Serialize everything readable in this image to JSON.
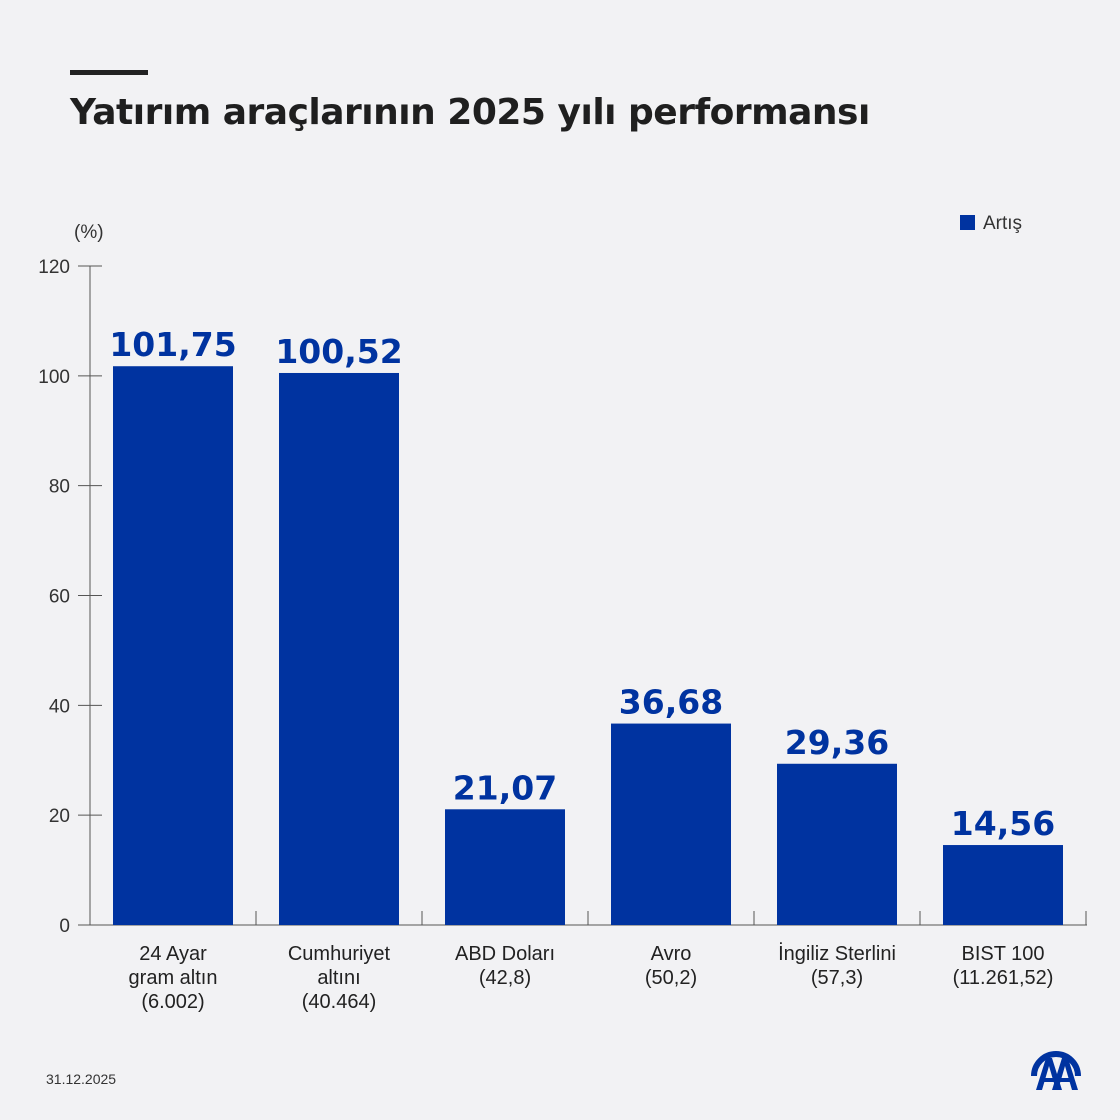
{
  "title": "Yatırım araçlarının 2025 yılı performansı",
  "date": "31.12.2025",
  "logo_text": "AA",
  "colors": {
    "bar": "#0033a0",
    "label": "#0033a0",
    "axis": "#555555",
    "background": "#f2f2f4"
  },
  "chart_data": {
    "type": "bar",
    "title": "Yatırım araçlarının 2025 yılı performansı",
    "ylabel": "(%)",
    "ylim": [
      0,
      120
    ],
    "yticks": [
      "0",
      "20",
      "40",
      "60",
      "80",
      "100",
      "120"
    ],
    "legend": {
      "position": "top-right",
      "entries": [
        "Artış"
      ]
    },
    "grid": false,
    "categories": [
      [
        "24 Ayar",
        "gram altın",
        "(6.002)"
      ],
      [
        "Cumhuriyet",
        "altını",
        "(40.464)"
      ],
      [
        "ABD Doları",
        "(42,8)"
      ],
      [
        "Avro",
        "(50,2)"
      ],
      [
        "İngiliz Sterlini",
        "(57,3)"
      ],
      [
        "BIST 100",
        "(11.261,52)"
      ]
    ],
    "series": [
      {
        "name": "Artış",
        "values": [
          101.75,
          100.52,
          21.07,
          36.68,
          29.36,
          14.56
        ],
        "labels": [
          "101,75",
          "100,52",
          "21,07",
          "36,68",
          "29,36",
          "14,56"
        ]
      }
    ]
  }
}
